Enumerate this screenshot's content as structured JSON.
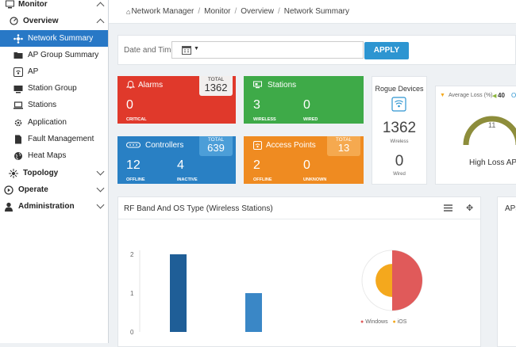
{
  "sidebar": {
    "monitor": "Monitor",
    "overview": "Overview",
    "items": [
      {
        "label": "Network Summary"
      },
      {
        "label": "AP Group Summary"
      },
      {
        "label": "AP"
      },
      {
        "label": "Station Group"
      },
      {
        "label": "Stations"
      },
      {
        "label": "Application"
      },
      {
        "label": "Fault Management"
      },
      {
        "label": "Heat Maps"
      }
    ],
    "topology": "Topology",
    "operate": "Operate",
    "administration": "Administration"
  },
  "breadcrumb": [
    "Network Manager",
    "Monitor",
    "Overview",
    "Network Summary"
  ],
  "datebar": {
    "label": "Date and Time",
    "apply": "APPLY"
  },
  "tiles": {
    "alarms": {
      "title": "Alarms",
      "total_label": "TOTAL",
      "total": "1362",
      "v1": "0",
      "l1": "CRITICAL",
      "color": "#e0392b"
    },
    "stations": {
      "title": "Stations",
      "v1": "3",
      "l1": "WIRELESS",
      "v2": "0",
      "l2": "WIRED",
      "color": "#3eaa48"
    },
    "controllers": {
      "title": "Controllers",
      "total_label": "TOTAL",
      "total": "639",
      "v1": "12",
      "l1": "OFFLINE",
      "v2": "4",
      "l2": "INACTIVE",
      "color": "#2980c4"
    },
    "access_points": {
      "title": "Access Points",
      "total_label": "TOTAL",
      "total": "13",
      "v1": "2",
      "l1": "OFFLINE",
      "v2": "0",
      "l2": "UNKNOWN",
      "color": "#ef8b21"
    }
  },
  "rogue": {
    "title": "Rogue Devices",
    "wireless_value": "1362",
    "wireless_label": "Wireless",
    "wired_value": "0",
    "wired_label": "Wired"
  },
  "loss": {
    "legend_label": "Average Loss (%)",
    "value": "40",
    "extra": "Ol",
    "gauge_value": "11",
    "title": "High Loss APs"
  },
  "rf_panel": {
    "title": "RF Band And OS Type (Wireless Stations)",
    "next_title": "APs"
  },
  "chart_data": [
    {
      "type": "bar",
      "categories": [
        "",
        ""
      ],
      "values": [
        2,
        1
      ],
      "yticks": [
        "0",
        "1",
        "2"
      ],
      "ylim": [
        0,
        2
      ]
    },
    {
      "type": "pie",
      "series": [
        {
          "name": "Windows",
          "value": 50,
          "color": "#e05a5a"
        },
        {
          "name": "iOS",
          "value": 50,
          "color": "#f4a81d"
        }
      ]
    }
  ]
}
